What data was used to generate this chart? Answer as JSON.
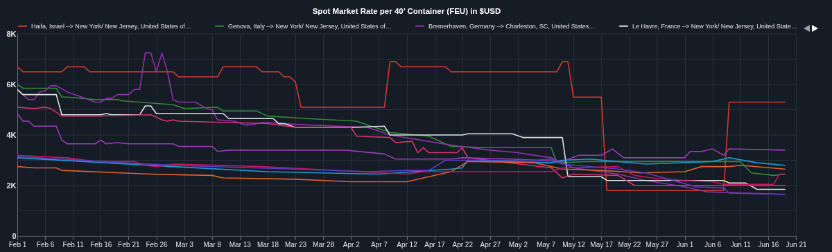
{
  "chart_data": {
    "type": "line",
    "title": "Spot Market Rate per 40’ Container (FEU) in $USD",
    "legend": "top",
    "grid": true,
    "xlim": [
      "--02-01",
      "--06-21"
    ],
    "xticks": [
      {
        "value": "--02-01",
        "label": "Feb 1"
      },
      {
        "value": "--02-06",
        "label": "Feb 6"
      },
      {
        "value": "--02-11",
        "label": "Feb 11"
      },
      {
        "value": "--02-16",
        "label": "Feb 16"
      },
      {
        "value": "--02-21",
        "label": "Feb 21"
      },
      {
        "value": "--02-26",
        "label": "Feb 26"
      },
      {
        "value": "--03-03",
        "label": "Mar 3"
      },
      {
        "value": "--03-08",
        "label": "Mar 8"
      },
      {
        "value": "--03-13",
        "label": "Mar 13"
      },
      {
        "value": "--03-18",
        "label": "Mar 18"
      },
      {
        "value": "--03-23",
        "label": "Mar 23"
      },
      {
        "value": "--03-28",
        "label": "Mar 28"
      },
      {
        "value": "--04-02",
        "label": "Apr 2"
      },
      {
        "value": "--04-07",
        "label": "Apr 7"
      },
      {
        "value": "--04-12",
        "label": "Apr 12"
      },
      {
        "value": "--04-17",
        "label": "Apr 17"
      },
      {
        "value": "--04-22",
        "label": "Apr 22"
      },
      {
        "value": "--04-27",
        "label": "Apr 27"
      },
      {
        "value": "--05-02",
        "label": "May 2"
      },
      {
        "value": "--05-07",
        "label": "May 7"
      },
      {
        "value": "--05-12",
        "label": "May 12"
      },
      {
        "value": "--05-17",
        "label": "May 17"
      },
      {
        "value": "--05-22",
        "label": "May 22"
      },
      {
        "value": "--05-27",
        "label": "May 27"
      },
      {
        "value": "--06-01",
        "label": "Jun 1"
      },
      {
        "value": "--06-06",
        "label": "Jun 6"
      },
      {
        "value": "--06-11",
        "label": "Jun 11"
      },
      {
        "value": "--06-16",
        "label": "Jun 16"
      },
      {
        "value": "--06-21",
        "label": "Jun 21"
      }
    ],
    "ylim": [
      0,
      8000
    ],
    "yticks": [
      {
        "value": 0,
        "label": "0"
      },
      {
        "value": 1000,
        "label": null
      },
      {
        "value": 2000,
        "label": "2K"
      },
      {
        "value": 3000,
        "label": null
      },
      {
        "value": 4000,
        "label": "4K"
      },
      {
        "value": 5000,
        "label": null
      },
      {
        "value": 6000,
        "label": "6K"
      },
      {
        "value": 7000,
        "label": null
      },
      {
        "value": 8000,
        "label": "8K"
      }
    ],
    "series": [
      {
        "name": "Haifa, Israel –> New York/ New Jersey, United States of…",
        "color": "#d23a2c",
        "x": [
          "--02-01",
          "--02-02",
          "--02-09",
          "--02-10",
          "--02-13",
          "--02-14",
          "--03-01",
          "--03-02",
          "--03-09",
          "--03-10",
          "--03-16",
          "--03-17",
          "--03-20",
          "--03-21",
          "--03-22",
          "--03-23",
          "--03-24",
          "--04-08",
          "--04-09",
          "--04-10",
          "--04-11",
          "--04-19",
          "--04-20",
          "--05-09",
          "--05-10",
          "--05-11",
          "--05-12",
          "--05-17",
          "--05-18",
          "--06-08",
          "--06-09",
          "--06-19"
        ],
        "values": [
          6700,
          6500,
          6500,
          6700,
          6700,
          6500,
          6500,
          6300,
          6300,
          6700,
          6700,
          6500,
          6500,
          6300,
          6300,
          6100,
          5100,
          5100,
          6900,
          6900,
          6700,
          6700,
          6500,
          6500,
          6900,
          6900,
          5500,
          5500,
          1800,
          1800,
          5300,
          5300
        ]
      },
      {
        "name": "Genova, Italy –> New York/ New Jersey, United States of…",
        "color": "#2f8a3a",
        "x": [
          "--02-01",
          "--02-02",
          "--02-08",
          "--02-09",
          "--02-10",
          "--02-15",
          "--02-19",
          "--02-20",
          "--03-01",
          "--03-03",
          "--03-09",
          "--03-10",
          "--03-16",
          "--03-18",
          "--03-25",
          "--04-03",
          "--04-05",
          "--04-09",
          "--04-16",
          "--04-20",
          "--04-27",
          "--05-08",
          "--05-09",
          "--05-15",
          "--06-11",
          "--06-13",
          "--06-17",
          "--06-19"
        ],
        "values": [
          6000,
          5850,
          5850,
          5500,
          5500,
          5400,
          5400,
          5350,
          5200,
          5050,
          5100,
          4950,
          4950,
          4750,
          4650,
          4550,
          4400,
          4100,
          3950,
          3550,
          3500,
          3500,
          2900,
          2950,
          2950,
          2500,
          2400,
          2450
        ]
      },
      {
        "name": "Bremerhaven, Germany –> Charleston, SC, United States…",
        "color": "#8e32a8",
        "x": [
          "--02-01",
          "--02-03",
          "--02-04",
          "--02-05",
          "--02-06",
          "--02-07",
          "--02-08",
          "--02-10",
          "--02-12",
          "--02-15",
          "--02-16",
          "--02-17",
          "--02-18",
          "--02-19",
          "--02-21",
          "--02-22",
          "--02-23",
          "--02-24",
          "--02-25",
          "--02-26",
          "--02-27",
          "--02-28",
          "--03-01",
          "--03-02",
          "--03-05",
          "--03-07",
          "--03-08",
          "--03-09",
          "--03-12",
          "--03-14",
          "--03-15",
          "--03-17",
          "--03-25",
          "--04-05",
          "--04-09",
          "--04-20",
          "--04-27",
          "--05-02",
          "--05-08",
          "--05-12",
          "--05-20",
          "--05-25",
          "--06-01",
          "--06-05",
          "--06-19"
        ],
        "values": [
          5800,
          5400,
          5400,
          5700,
          5750,
          5950,
          5950,
          5700,
          5550,
          5300,
          5300,
          5450,
          5450,
          5600,
          5600,
          5800,
          5800,
          7250,
          7250,
          6500,
          7250,
          6500,
          5400,
          5300,
          5300,
          5050,
          5000,
          4600,
          4550,
          4400,
          4400,
          4500,
          4400,
          4300,
          4000,
          3600,
          3400,
          3300,
          3100,
          2700,
          2450,
          2200,
          1950,
          1750,
          1650
        ]
      },
      {
        "name": "Le Havre, France –> New York/ New Jersey, United State…",
        "color": "#e0e0e0",
        "x": [
          "--02-01",
          "--02-02",
          "--02-08",
          "--02-09",
          "--02-16",
          "--02-17",
          "--02-18",
          "--02-23",
          "--02-24",
          "--02-25",
          "--02-26",
          "--03-10",
          "--03-11",
          "--03-19",
          "--03-20",
          "--03-21",
          "--03-23",
          "--04-02",
          "--04-08",
          "--04-09",
          "--04-22",
          "--04-23",
          "--05-01",
          "--05-03",
          "--05-10",
          "--05-11",
          "--05-17",
          "--05-18",
          "--06-08",
          "--06-09",
          "--06-12",
          "--06-14",
          "--06-19"
        ],
        "values": [
          5800,
          5600,
          5600,
          4800,
          4800,
          4850,
          4800,
          4800,
          5150,
          5150,
          4850,
          4850,
          4650,
          4650,
          4450,
          4450,
          4300,
          4300,
          4350,
          4000,
          4000,
          4050,
          4050,
          3900,
          3900,
          2350,
          2350,
          2200,
          2200,
          2100,
          2100,
          1850,
          1850
        ]
      },
      {
        "color": "#d6336c",
        "x": [
          "--02-01",
          "--02-04",
          "--02-06",
          "--02-07",
          "--02-09",
          "--02-15",
          "--02-25",
          "--02-27",
          "--02-28",
          "--03-01",
          "--03-02",
          "--03-18",
          "--03-23",
          "--04-02",
          "--04-03",
          "--04-09",
          "--04-10",
          "--04-13",
          "--04-14",
          "--04-15",
          "--04-16",
          "--04-21",
          "--04-22",
          "--04-23",
          "--05-08",
          "--05-10",
          "--05-12",
          "--05-20",
          "--05-23",
          "--06-05",
          "--06-19"
        ],
        "values": [
          5100,
          5050,
          5100,
          5050,
          4750,
          4750,
          4800,
          4600,
          4550,
          4600,
          4550,
          4450,
          4300,
          4300,
          3950,
          3900,
          3700,
          3750,
          3300,
          3500,
          3300,
          3300,
          3500,
          3100,
          2700,
          2300,
          2450,
          2400,
          2000,
          2000,
          2000
        ]
      },
      {
        "color": "#9c3cb8",
        "x": [
          "--02-01",
          "--02-02",
          "--02-03",
          "--02-04",
          "--02-08",
          "--02-09",
          "--02-10",
          "--02-15",
          "--02-16",
          "--02-17",
          "--02-19",
          "--02-21",
          "--03-01",
          "--03-02",
          "--03-08",
          "--03-09",
          "--03-11",
          "--04-01",
          "--04-08",
          "--04-10",
          "--04-20",
          "--04-22",
          "--05-01",
          "--05-10",
          "--05-13",
          "--05-17",
          "--05-19",
          "--05-21",
          "--06-01",
          "--06-02",
          "--06-04",
          "--06-06",
          "--06-08",
          "--06-09",
          "--06-19"
        ],
        "values": [
          4850,
          4550,
          4550,
          4350,
          4350,
          3800,
          3650,
          3650,
          3800,
          3650,
          3700,
          3650,
          3650,
          3550,
          3550,
          3350,
          3400,
          3400,
          3250,
          3050,
          3050,
          3100,
          3050,
          2950,
          3200,
          3200,
          3450,
          3100,
          3100,
          3350,
          3350,
          3450,
          3200,
          3450,
          3400
        ]
      },
      {
        "color": "#1e9bd7",
        "x": [
          "--02-01",
          "--03-01",
          "--03-18",
          "--04-07",
          "--04-20",
          "--04-22",
          "--04-23",
          "--05-08",
          "--05-10",
          "--05-15",
          "--05-25",
          "--06-06",
          "--06-09",
          "--06-14",
          "--06-19"
        ],
        "values": [
          3100,
          2750,
          2550,
          2450,
          2650,
          2700,
          3000,
          2900,
          3000,
          3050,
          2850,
          2950,
          3100,
          2900,
          2800
        ]
      },
      {
        "color": "#e0602a",
        "x": [
          "--02-01",
          "--02-04",
          "--02-08",
          "--02-09",
          "--02-25",
          "--03-08",
          "--03-10",
          "--03-23",
          "--04-02",
          "--04-12",
          "--04-16",
          "--04-20",
          "--04-23",
          "--05-05",
          "--05-10",
          "--05-17",
          "--05-24",
          "--06-01",
          "--06-04",
          "--06-09",
          "--06-11",
          "--06-19"
        ],
        "values": [
          2750,
          2700,
          2700,
          2600,
          2450,
          2400,
          2300,
          2250,
          2150,
          2150,
          2350,
          2550,
          2950,
          2900,
          2650,
          2600,
          2500,
          2550,
          2750,
          2750,
          2800,
          2650
        ]
      },
      {
        "color": "#c2185b",
        "x": [
          "--02-01",
          "--02-10",
          "--02-15",
          "--02-22",
          "--02-24",
          "--02-26",
          "--03-01",
          "--03-17",
          "--04-12",
          "--04-15",
          "--05-08",
          "--05-10",
          "--05-20",
          "--05-23",
          "--05-26",
          "--06-01",
          "--06-06",
          "--06-08",
          "--06-17",
          "--06-18",
          "--06-19"
        ],
        "values": [
          3200,
          3100,
          2950,
          2950,
          2800,
          2750,
          2850,
          2750,
          2450,
          2550,
          2550,
          2700,
          2750,
          2400,
          2300,
          2200,
          2150,
          2050,
          2050,
          2450,
          2450
        ]
      },
      {
        "color": "#5b3cc4",
        "x": [
          "--02-01",
          "--02-20",
          "--03-01",
          "--03-23",
          "--04-05",
          "--04-12",
          "--04-16",
          "--04-19",
          "--05-05",
          "--05-08",
          "--05-10",
          "--05-20",
          "--05-25",
          "--06-03",
          "--06-08",
          "--06-09",
          "--06-19"
        ],
        "values": [
          3150,
          2900,
          2800,
          2650,
          2550,
          2600,
          2600,
          3000,
          3000,
          3050,
          2850,
          2650,
          2500,
          1950,
          1900,
          1700,
          1650
        ]
      }
    ]
  }
}
